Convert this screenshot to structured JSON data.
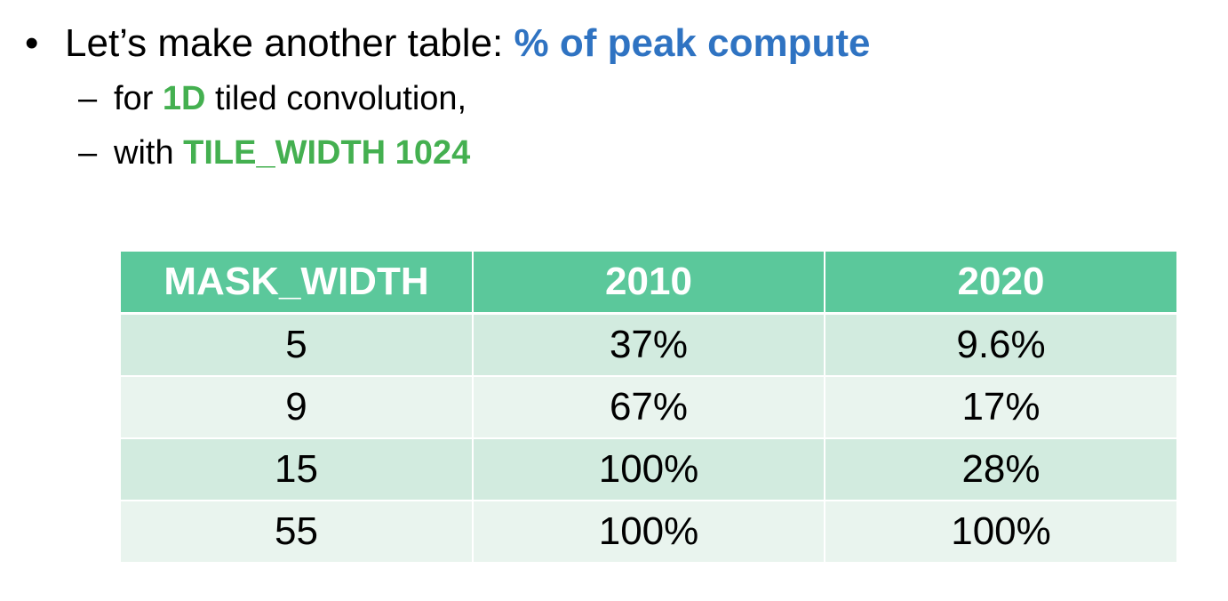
{
  "bullet": {
    "symbol": "•",
    "text_prefix": "Let’s make another table: ",
    "text_highlight": "% of peak compute"
  },
  "sub_items": [
    {
      "dash": "–",
      "prefix": "for ",
      "highlight": "1D",
      "suffix": " tiled convolution,"
    },
    {
      "dash": "–",
      "prefix": "with ",
      "highlight": "TILE_WIDTH 1024",
      "suffix": ""
    }
  ],
  "table": {
    "headers": [
      "MASK_WIDTH",
      "2010",
      "2020"
    ],
    "rows": [
      [
        "5",
        "37%",
        "9.6%"
      ],
      [
        "9",
        "67%",
        "17%"
      ],
      [
        "15",
        "100%",
        "28%"
      ],
      [
        "55",
        "100%",
        "100%"
      ]
    ]
  },
  "colors": {
    "title_accent": "#2f73c2",
    "green_accent": "#44b050",
    "header_bg": "#5bc89b",
    "row_dark": "#d2ebdf",
    "row_light": "#e9f4ee"
  }
}
